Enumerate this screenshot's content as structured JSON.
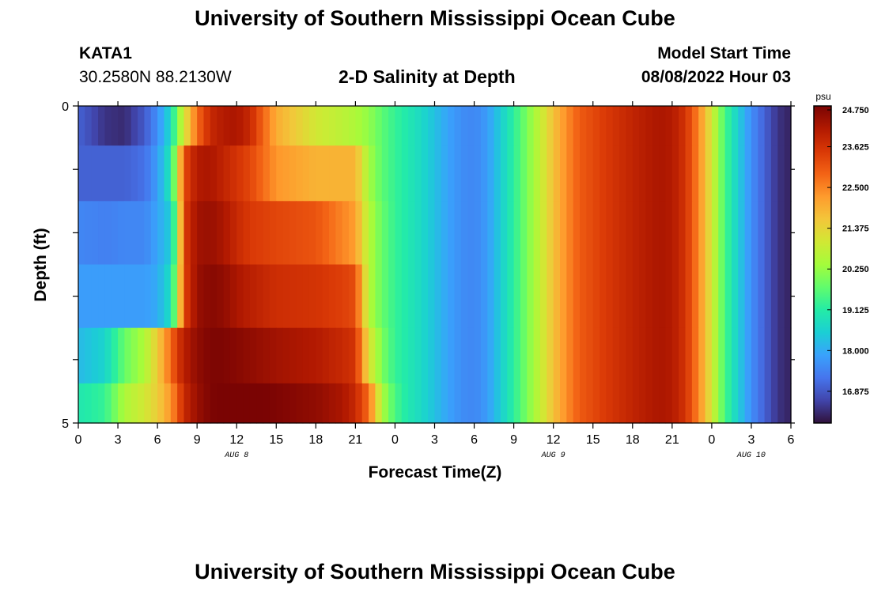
{
  "header": {
    "title": "University of Southern Mississippi Ocean Cube",
    "station": "KATA1",
    "coordinates": "30.2580N  88.2130W",
    "plot_title": "2-D Salinity at Depth",
    "model_start_label": "Model Start Time",
    "model_start_value": "08/08/2022 Hour 03"
  },
  "footer": {
    "title": "University of Southern Mississippi Ocean Cube"
  },
  "chart_data": {
    "type": "heatmap",
    "title": "2-D Salinity at Depth",
    "xlabel": "Forecast Time(Z)",
    "ylabel": "Depth (ft)",
    "x_hours_from_start": [
      0,
      54
    ],
    "xlim": [
      0,
      54
    ],
    "ylim": [
      0,
      5
    ],
    "x_ticks": [
      "0",
      "3",
      "6",
      "9",
      "12",
      "15",
      "18",
      "21",
      "0",
      "3",
      "6",
      "9",
      "12",
      "15",
      "18",
      "21",
      "0",
      "3",
      "6"
    ],
    "x_tick_hours": [
      0,
      3,
      6,
      9,
      12,
      15,
      18,
      21,
      24,
      27,
      30,
      33,
      36,
      39,
      42,
      45,
      48,
      51,
      54
    ],
    "date_labels": [
      {
        "label": "AUG 8",
        "hour": 12
      },
      {
        "label": "AUG 9",
        "hour": 36
      },
      {
        "label": "AUG 10",
        "hour": 51
      }
    ],
    "y_tick_labels": [
      "0",
      "5"
    ],
    "y_ticks": [
      0,
      5
    ],
    "colorbar": {
      "unit": "psu",
      "min": 16.0,
      "max": 24.75,
      "ticks": [
        "24.750",
        "23.625",
        "22.500",
        "21.375",
        "20.250",
        "19.125",
        "18.000",
        "16.875"
      ],
      "colormap": [
        "#30123b",
        "#4145ab",
        "#4675ed",
        "#39a2fc",
        "#1bcfd4",
        "#24eca6",
        "#61fc6c",
        "#a4fc3b",
        "#d1e834",
        "#f3c63a",
        "#fe9b2d",
        "#f36315",
        "#d93806",
        "#b11901",
        "#7a0403"
      ]
    },
    "depth_layers": [
      0.25,
      1.0,
      2.0,
      3.0,
      4.0,
      4.75
    ],
    "time_knots_hours": [
      0,
      2,
      3.5,
      5,
      6,
      7,
      7.5,
      8,
      9,
      10,
      11,
      12,
      13,
      15,
      18,
      20,
      21,
      22,
      23,
      24,
      25,
      26,
      27,
      28,
      29,
      30,
      31,
      32,
      33,
      34,
      35,
      36,
      37,
      38,
      40,
      42,
      44,
      45,
      46,
      47,
      48,
      49,
      50,
      51,
      53,
      54
    ],
    "salinity_psu": [
      [
        17.0,
        16.4,
        16.3,
        16.9,
        17.6,
        18.7,
        20.0,
        21.0,
        22.8,
        23.8,
        24.1,
        24.2,
        23.8,
        22.0,
        21.0,
        20.7,
        20.5,
        20.2,
        19.7,
        19.3,
        19.0,
        18.7,
        18.3,
        17.9,
        17.6,
        17.5,
        17.8,
        18.5,
        19.2,
        20.0,
        20.8,
        21.7,
        22.4,
        23.0,
        23.5,
        23.9,
        24.2,
        24.1,
        23.6,
        22.5,
        21.0,
        19.5,
        18.5,
        17.6,
        16.4,
        16.2
      ],
      [
        17.0,
        17.0,
        17.0,
        17.2,
        17.8,
        19.0,
        20.8,
        23.2,
        24.1,
        24.2,
        23.9,
        23.6,
        23.3,
        22.3,
        21.9,
        21.9,
        21.9,
        20.4,
        19.7,
        19.3,
        19.0,
        18.7,
        18.3,
        17.9,
        17.6,
        17.5,
        17.8,
        18.5,
        19.2,
        20.0,
        20.8,
        21.7,
        22.4,
        23.0,
        23.5,
        23.9,
        24.2,
        24.1,
        23.6,
        22.5,
        21.0,
        19.5,
        18.5,
        17.6,
        16.4,
        16.2
      ],
      [
        17.5,
        17.4,
        17.5,
        17.5,
        17.9,
        18.5,
        20.2,
        23.4,
        24.3,
        24.4,
        24.2,
        23.8,
        23.5,
        23.3,
        23.1,
        22.5,
        22.2,
        20.6,
        19.8,
        19.3,
        19.0,
        18.7,
        18.3,
        17.9,
        17.6,
        17.5,
        17.8,
        18.5,
        19.2,
        20.0,
        20.8,
        21.7,
        22.4,
        23.0,
        23.5,
        23.9,
        24.2,
        24.1,
        23.6,
        22.5,
        21.0,
        19.5,
        18.5,
        17.6,
        16.4,
        16.2
      ],
      [
        17.8,
        17.8,
        17.8,
        17.8,
        18.0,
        18.8,
        20.5,
        23.3,
        24.4,
        24.6,
        24.5,
        24.2,
        24.0,
        23.7,
        23.6,
        23.4,
        23.2,
        20.6,
        19.8,
        19.3,
        19.0,
        18.7,
        18.3,
        17.9,
        17.6,
        17.5,
        17.8,
        18.5,
        19.2,
        20.0,
        20.8,
        21.7,
        22.4,
        23.0,
        23.5,
        23.9,
        24.2,
        24.1,
        23.6,
        22.5,
        21.0,
        19.5,
        18.5,
        17.6,
        16.4,
        16.2
      ],
      [
        18.2,
        18.6,
        19.8,
        20.5,
        21.5,
        22.8,
        23.5,
        24.0,
        24.5,
        24.7,
        24.7,
        24.6,
        24.5,
        24.3,
        24.1,
        23.8,
        23.6,
        21.2,
        20.0,
        19.3,
        19.0,
        18.7,
        18.3,
        17.9,
        17.6,
        17.5,
        17.8,
        18.5,
        19.2,
        20.0,
        20.8,
        21.7,
        22.4,
        23.0,
        23.5,
        23.9,
        24.2,
        24.1,
        23.6,
        22.5,
        21.0,
        19.5,
        18.5,
        17.6,
        16.4,
        16.2
      ],
      [
        19.0,
        19.3,
        20.5,
        21.0,
        21.5,
        22.3,
        23.0,
        23.8,
        24.4,
        24.7,
        24.8,
        24.8,
        24.8,
        24.7,
        24.5,
        24.2,
        23.8,
        22.8,
        20.5,
        19.5,
        19.0,
        18.7,
        18.3,
        17.9,
        17.6,
        17.5,
        17.8,
        18.5,
        19.2,
        20.0,
        20.8,
        21.7,
        22.4,
        23.0,
        23.5,
        23.9,
        24.2,
        24.1,
        23.6,
        22.5,
        21.0,
        19.5,
        18.5,
        17.6,
        16.4,
        16.2
      ]
    ]
  }
}
